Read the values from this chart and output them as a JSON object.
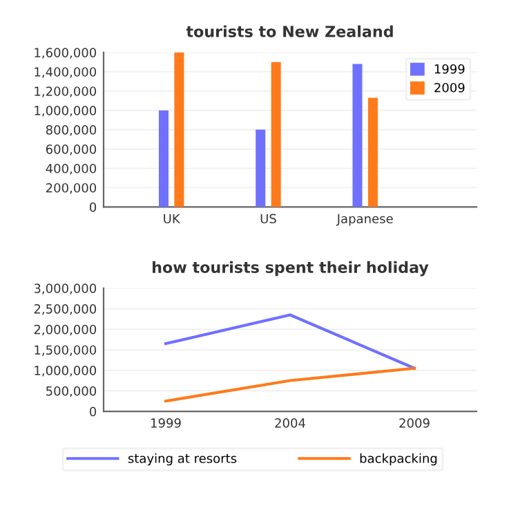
{
  "chart_data": [
    {
      "type": "bar",
      "title": "tourists to New Zealand",
      "categories": [
        "UK",
        "US",
        "Japanese"
      ],
      "series": [
        {
          "name": "1999",
          "color": "#7070ff",
          "values": [
            1000000,
            800000,
            1480000
          ]
        },
        {
          "name": "2009",
          "color": "#ff7a1a",
          "values": [
            1600000,
            1500000,
            1130000
          ]
        }
      ],
      "ylim": [
        0,
        1600000
      ],
      "yticks": [
        {
          "value": 0,
          "label": "0"
        },
        {
          "value": 200000,
          "label": "200,000"
        },
        {
          "value": 400000,
          "label": "400,000"
        },
        {
          "value": 600000,
          "label": "600,000"
        },
        {
          "value": 800000,
          "label": "800,000"
        },
        {
          "value": 1000000,
          "label": "1,000,000"
        },
        {
          "value": 1200000,
          "label": "1,200,000"
        },
        {
          "value": 1400000,
          "label": "1,400,000"
        },
        {
          "value": 1600000,
          "label": "1,600,000"
        }
      ],
      "grid": "y",
      "legend": "top right"
    },
    {
      "type": "line",
      "title": "how tourists spent their holiday",
      "categories": [
        "1999",
        "2004",
        "2009"
      ],
      "series": [
        {
          "name": "staying at resorts",
          "color": "#7070ff",
          "values": [
            1650000,
            2350000,
            1050000
          ]
        },
        {
          "name": "backpacking",
          "color": "#ff7a1a",
          "values": [
            250000,
            750000,
            1050000
          ]
        }
      ],
      "ylim": [
        0,
        3000000
      ],
      "yticks": [
        {
          "value": 0,
          "label": "0"
        },
        {
          "value": 500000,
          "label": "500,000"
        },
        {
          "value": 1000000,
          "label": "1,000,000"
        },
        {
          "value": 1500000,
          "label": "1,500,000"
        },
        {
          "value": 2000000,
          "label": "2,000,000"
        },
        {
          "value": 2500000,
          "label": "2,500,000"
        },
        {
          "value": 3000000,
          "label": "3,000,000"
        }
      ],
      "grid": "y",
      "legend": "bottom",
      "marker": "none",
      "line_style": "solid"
    }
  ]
}
